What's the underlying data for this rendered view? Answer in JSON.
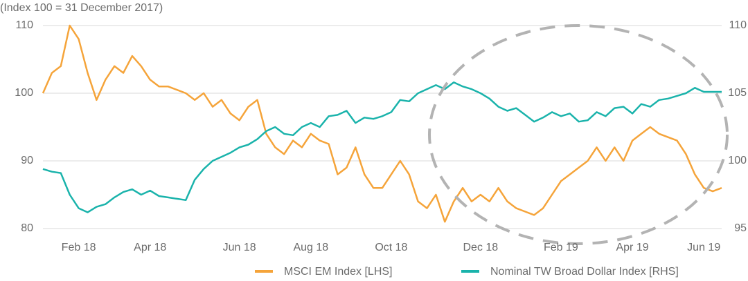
{
  "chart_data": {
    "type": "line",
    "subtitle": "(Index 100 = 31 December 2017)",
    "categories": [
      null,
      null,
      null,
      null,
      "Feb 18",
      null,
      null,
      null,
      null,
      null,
      null,
      null,
      "Apr 18",
      null,
      null,
      null,
      null,
      null,
      null,
      null,
      null,
      null,
      "Jun 18",
      null,
      null,
      null,
      null,
      null,
      null,
      null,
      "Aug 18",
      null,
      null,
      null,
      null,
      null,
      null,
      null,
      null,
      "Oct 18",
      null,
      null,
      null,
      null,
      null,
      null,
      null,
      null,
      null,
      "Dec 18",
      null,
      null,
      null,
      null,
      null,
      null,
      null,
      null,
      "Feb 19",
      null,
      null,
      null,
      null,
      null,
      null,
      null,
      "Apr 19",
      null,
      null,
      null,
      null,
      null,
      null,
      null,
      "Jun 19",
      null,
      null
    ],
    "series": [
      {
        "name": "MSCI EM Index [LHS]",
        "color": "#f5a43a",
        "axis": "y",
        "values": [
          100,
          103,
          104,
          110,
          108,
          103,
          99,
          102,
          104,
          103,
          105.5,
          104,
          102,
          101,
          101,
          100.5,
          100,
          99,
          100,
          98,
          99,
          97,
          96,
          98,
          99,
          94,
          92,
          91,
          93,
          92,
          94,
          93,
          92.5,
          88,
          89,
          92,
          88,
          86,
          86,
          88,
          90,
          88,
          84,
          83,
          85,
          81,
          84,
          86,
          84,
          85,
          84,
          86,
          84,
          83,
          82.5,
          82,
          83,
          85,
          87,
          88,
          89,
          90,
          92,
          90,
          92,
          90,
          93,
          94,
          95,
          94,
          93.5,
          93,
          91,
          88,
          86,
          85.5,
          86
        ]
      },
      {
        "name": "Nominal TW Broad Dollar Index [RHS]",
        "color": "#1ab3ab",
        "axis": "y2",
        "values": [
          99.4,
          99.2,
          99.1,
          97.5,
          96.5,
          96.2,
          96.6,
          96.8,
          97.3,
          97.7,
          97.9,
          97.5,
          97.8,
          97.4,
          97.3,
          97.2,
          97.1,
          98.6,
          99.4,
          100.0,
          100.3,
          100.6,
          101.0,
          101.2,
          101.6,
          102.2,
          102.5,
          102.0,
          101.9,
          102.5,
          102.8,
          102.5,
          103.3,
          103.4,
          103.7,
          102.8,
          103.2,
          103.1,
          103.3,
          103.6,
          104.5,
          104.4,
          105.0,
          105.3,
          105.6,
          105.3,
          105.8,
          105.5,
          105.3,
          105.0,
          104.6,
          104.0,
          103.7,
          103.9,
          103.4,
          102.9,
          103.2,
          103.6,
          103.3,
          103.5,
          102.9,
          103.0,
          103.6,
          103.3,
          103.9,
          104.0,
          103.5,
          104.2,
          104.0,
          104.5,
          104.6,
          104.8,
          105.0,
          105.4,
          105.1,
          105.1,
          105.1
        ]
      }
    ],
    "ylim": [
      80,
      110
    ],
    "yticks": [
      80,
      90,
      100,
      110
    ],
    "y2lim": [
      95,
      110
    ],
    "y2ticks": [
      95,
      100,
      105,
      110
    ],
    "grid": true
  }
}
